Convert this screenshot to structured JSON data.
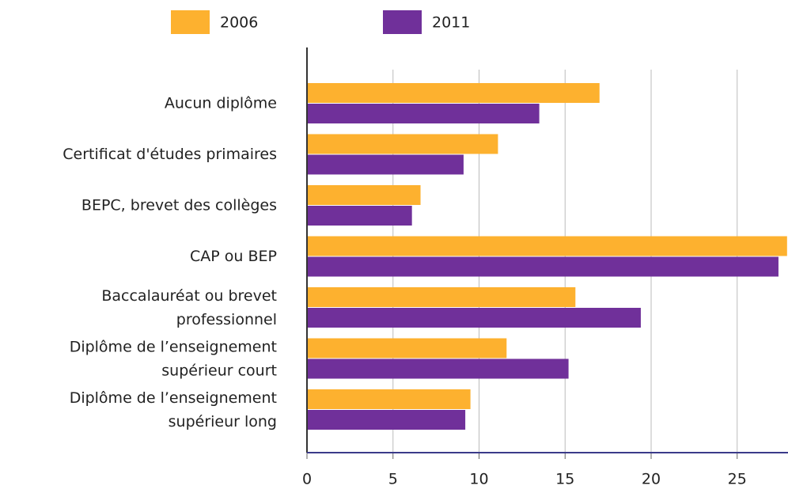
{
  "chart_data": {
    "type": "hbar",
    "categories": [
      "Aucun diplôme",
      "Certificat d'études primaires",
      "BEPC, brevet des collèges",
      "CAP ou BEP",
      "Baccalauréat ou brevet\nprofessionnel",
      "Diplôme de l’enseignement\nsupérieur court",
      "Diplôme de l’enseignement\nsupérieur long"
    ],
    "series": [
      {
        "name": "2006",
        "color": "#fdb12f",
        "values": [
          17.0,
          11.1,
          6.6,
          27.9,
          15.6,
          11.6,
          9.5
        ]
      },
      {
        "name": "2011",
        "color": "#70309a",
        "values": [
          13.5,
          9.1,
          6.1,
          27.4,
          19.4,
          15.2,
          9.2
        ]
      }
    ],
    "xlim": [
      0,
      28
    ],
    "xticks": [
      0,
      5,
      10,
      15,
      20,
      25
    ],
    "grid": true,
    "legend": "top"
  }
}
